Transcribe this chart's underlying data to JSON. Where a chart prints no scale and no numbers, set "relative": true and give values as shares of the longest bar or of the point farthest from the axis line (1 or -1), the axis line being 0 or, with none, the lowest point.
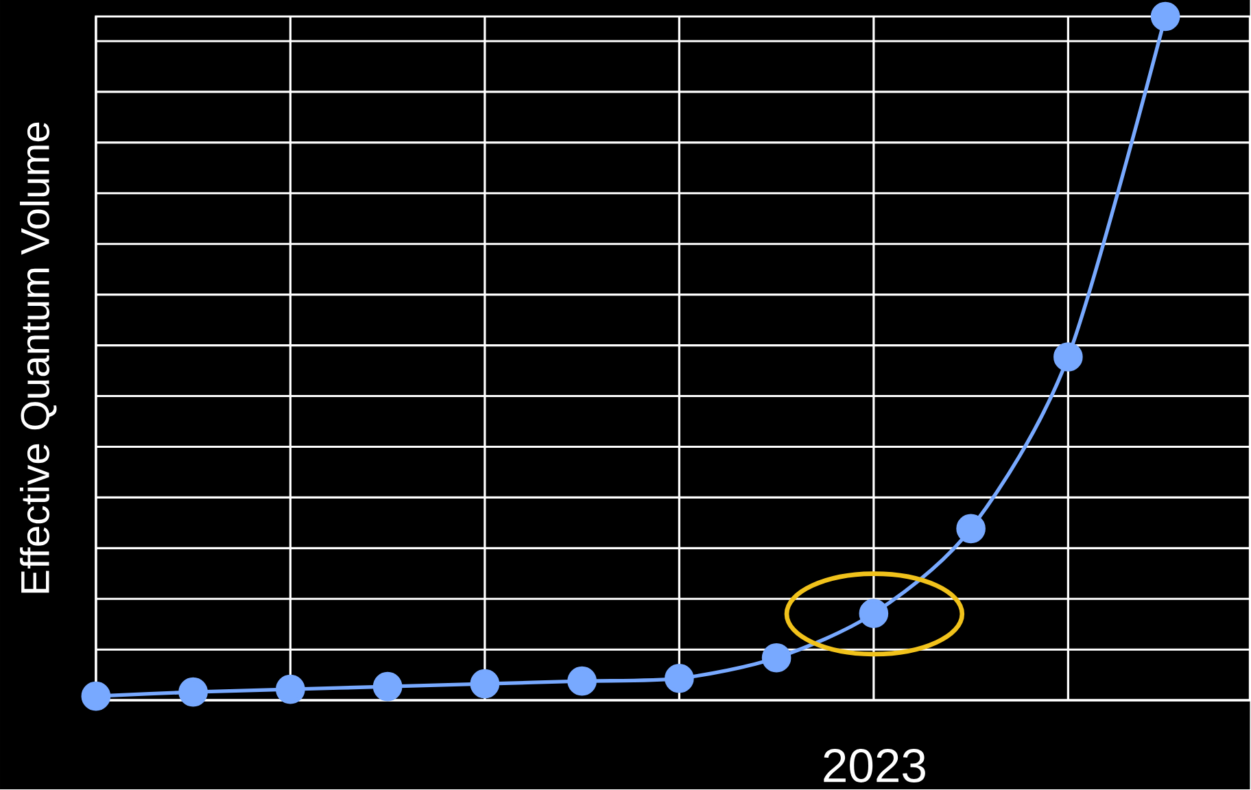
{
  "chart_data": {
    "type": "line",
    "ylabel": "Effective Quantum Volume",
    "categories": [
      null,
      null,
      null,
      null,
      null,
      null,
      null,
      null,
      null,
      null,
      null,
      null
    ],
    "relative": true,
    "grid": true,
    "marker": "circle",
    "line_style": "solid",
    "annotations": [
      "2023"
    ],
    "series": [
      {
        "color": "#78a9ff",
        "values": [
          0.006,
          0.012,
          0.016,
          0.02,
          0.024,
          0.028,
          0.032,
          0.062,
          0.127,
          0.251,
          0.502,
          1
        ]
      }
    ]
  }
}
